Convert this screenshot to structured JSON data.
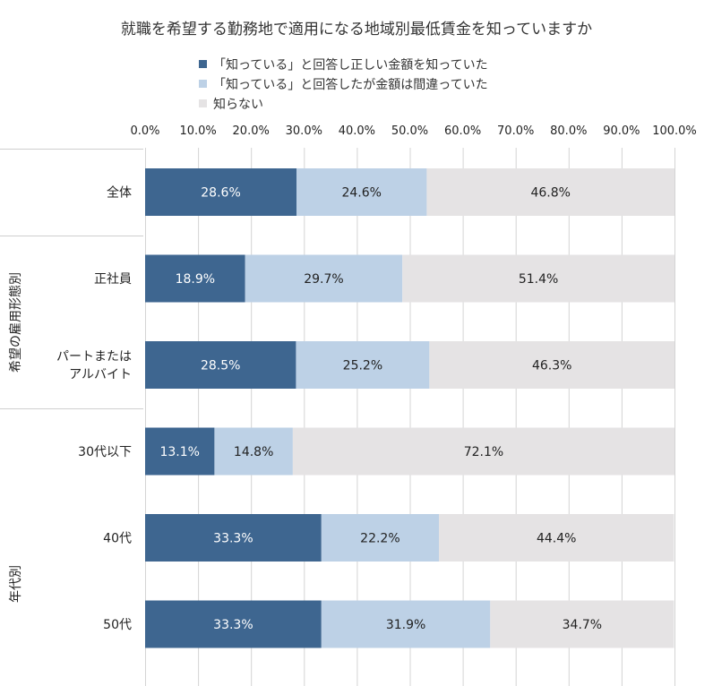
{
  "chart_data": {
    "type": "bar",
    "orientation": "horizontal",
    "stacked": true,
    "title": "就職を希望する勤務地で適用になる地域別最低賃金を知っていますか",
    "categories": [
      "全体",
      "正社員",
      "パートまたは\nアルバイト",
      "30代以下",
      "40代",
      "50代"
    ],
    "groups": [
      {
        "label": "希望の雇用形態別",
        "categories": [
          "正社員",
          "パートまたは\nアルバイト"
        ]
      },
      {
        "label": "年代別",
        "categories": [
          "30代以下",
          "40代",
          "50代"
        ]
      }
    ],
    "series": [
      {
        "name": "「知っている」と回答し正しい金額を知っていた",
        "color": "#3e6690",
        "values": [
          28.6,
          18.9,
          28.5,
          13.1,
          33.3,
          33.3
        ]
      },
      {
        "name": "「知っている」と回答したが金額は間違っていた",
        "color": "#bdd1e6",
        "values": [
          24.6,
          29.7,
          25.2,
          14.8,
          22.2,
          31.9
        ]
      },
      {
        "name": "知らない",
        "color": "#e5e3e4",
        "values": [
          46.8,
          51.4,
          46.3,
          72.1,
          44.4,
          34.7
        ]
      }
    ],
    "data_labels": [
      [
        "28.6%",
        "18.9%",
        "28.5%",
        "13.1%",
        "33.3%",
        "33.3%"
      ],
      [
        "24.6%",
        "29.7%",
        "25.2%",
        "14.8%",
        "22.2%",
        "31.9%"
      ],
      [
        "46.8%",
        "51.4%",
        "46.3%",
        "72.1%",
        "44.4%",
        "34.7%"
      ]
    ],
    "xlim": [
      0,
      100
    ],
    "xticks": [
      0,
      10,
      20,
      30,
      40,
      50,
      60,
      70,
      80,
      90,
      100
    ],
    "xtick_labels": [
      "0.0%",
      "10.0%",
      "20.0%",
      "30.0%",
      "40.0%",
      "50.0%",
      "60.0%",
      "70.0%",
      "80.0%",
      "90.0%",
      "100.0%"
    ],
    "xaxis_position": "top",
    "grid": true,
    "legend_position": "top"
  }
}
